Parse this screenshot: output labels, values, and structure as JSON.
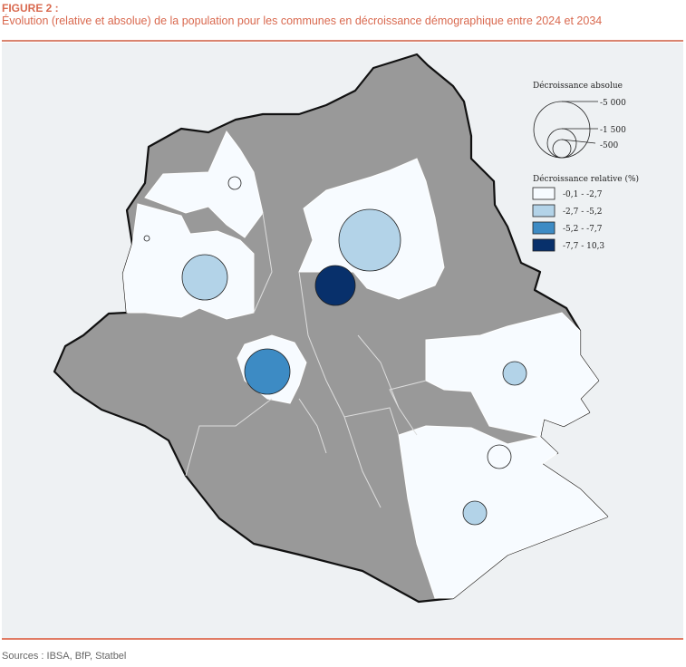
{
  "figure": {
    "label": "FIGURE 2 :",
    "title": "Évolution (relative et absolue) de la population pour les communes en décroissance démographique entre 2024 et 2034",
    "sources": "Sources : IBSA, BfP, Statbel"
  },
  "colors": {
    "accent": "#d9694f",
    "non_decreasing": "#999999",
    "class_1": "#f7fbff",
    "class_2": "#b3d3e8",
    "class_3": "#3d8bc4",
    "class_4": "#08306b"
  },
  "legend": {
    "absolute_title": "Décroissance absolue",
    "absolute_sizes": [
      "-5 000",
      "-1 500",
      "-500"
    ],
    "relative_title": "Décroissance relative (%)",
    "relative_classes": [
      "-0,1 - -2,7",
      "-2,7 - -5,2",
      "-5,2 - -7,7",
      "-7,7 - 10,3"
    ]
  },
  "symbols": [
    {
      "class": 1,
      "size": "small"
    },
    {
      "class": 1,
      "size": "tiny"
    },
    {
      "class": 2,
      "size": "medium"
    },
    {
      "class": 2,
      "size": "large"
    },
    {
      "class": 4,
      "size": "medium-small"
    },
    {
      "class": 3,
      "size": "medium"
    },
    {
      "class": 2,
      "size": "small"
    },
    {
      "class": 1,
      "size": "small"
    },
    {
      "class": 2,
      "size": "small"
    }
  ]
}
